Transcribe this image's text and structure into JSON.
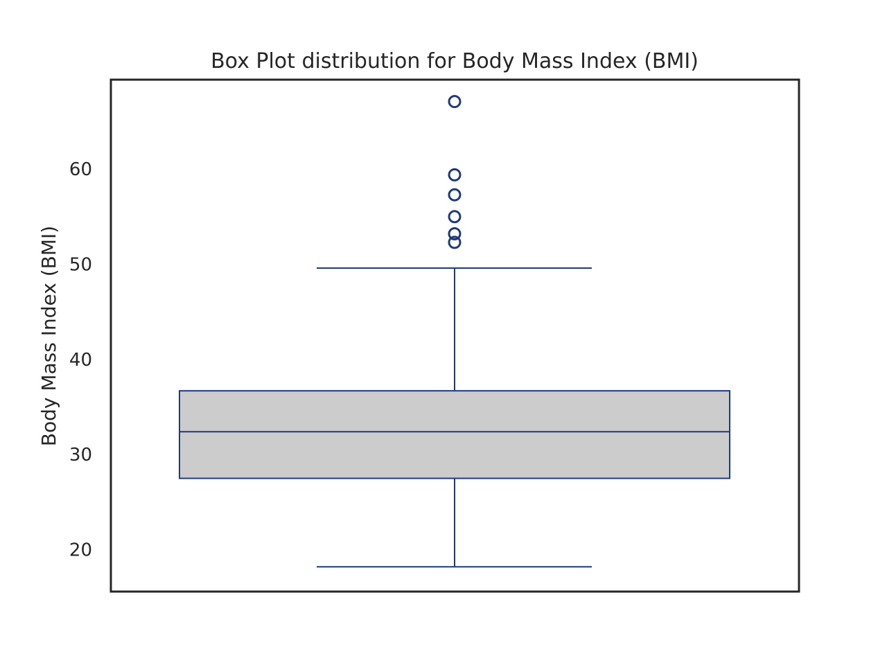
{
  "chart_data": {
    "type": "box",
    "title": "Box Plot distribution for Body Mass Index (BMI)",
    "xlabel": "",
    "ylabel": "Body Mass Index (BMI)",
    "ylim": [
      15.6,
      69.4
    ],
    "yticks": [
      20,
      30,
      40,
      50,
      60
    ],
    "ytick_labels": [
      "20",
      "30",
      "40",
      "50",
      "60"
    ],
    "grid": false,
    "box": {
      "whisker_low": 18.2,
      "q1": 27.5,
      "median": 32.4,
      "q3": 36.7,
      "whisker_high": 49.6,
      "outliers": [
        52.3,
        53.2,
        55.0,
        57.3,
        59.4,
        67.1
      ]
    },
    "colors": {
      "box_fill": "#cccccc",
      "box_line": "#1f3a7a",
      "frame": "#262626",
      "text": "#262626"
    }
  }
}
